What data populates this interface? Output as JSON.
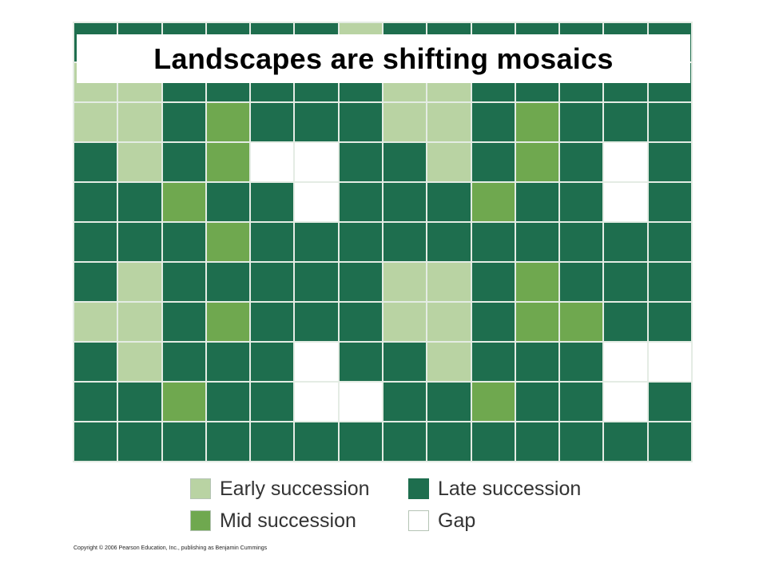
{
  "title": "Landscapes are shifting mosaics",
  "colors": {
    "E": "#b9d3a3",
    "M": "#6fa84f",
    "L": "#1e6e4e",
    "G": "#ffffff"
  },
  "mosaic": {
    "rows": [
      [
        "L",
        "L",
        "L",
        "L",
        "L",
        "L",
        "E",
        "L",
        "L",
        "L",
        "L",
        "L",
        "L",
        "L"
      ],
      [
        "E",
        "E",
        "L",
        "L",
        "L",
        "L",
        "L",
        "E",
        "E",
        "L",
        "L",
        "L",
        "L",
        "L"
      ],
      [
        "E",
        "E",
        "L",
        "M",
        "L",
        "L",
        "L",
        "E",
        "E",
        "L",
        "M",
        "L",
        "L",
        "L"
      ],
      [
        "L",
        "E",
        "L",
        "M",
        "G",
        "G",
        "L",
        "L",
        "E",
        "L",
        "M",
        "L",
        "G",
        "L"
      ],
      [
        "L",
        "L",
        "M",
        "L",
        "L",
        "G",
        "L",
        "L",
        "L",
        "M",
        "L",
        "L",
        "G",
        "L"
      ],
      [
        "L",
        "L",
        "L",
        "M",
        "L",
        "L",
        "L",
        "L",
        "L",
        "L",
        "L",
        "L",
        "L",
        "L"
      ],
      [
        "L",
        "E",
        "L",
        "L",
        "L",
        "L",
        "L",
        "E",
        "E",
        "L",
        "M",
        "L",
        "L",
        "L"
      ],
      [
        "E",
        "E",
        "L",
        "M",
        "L",
        "L",
        "L",
        "E",
        "E",
        "L",
        "M",
        "M",
        "L",
        "L"
      ],
      [
        "L",
        "E",
        "L",
        "L",
        "L",
        "G",
        "L",
        "L",
        "E",
        "L",
        "L",
        "L",
        "G",
        "G"
      ],
      [
        "L",
        "L",
        "M",
        "L",
        "L",
        "G",
        "G",
        "L",
        "L",
        "M",
        "L",
        "L",
        "G",
        "L"
      ],
      [
        "L",
        "L",
        "L",
        "L",
        "L",
        "L",
        "L",
        "L",
        "L",
        "L",
        "L",
        "L",
        "L",
        "L"
      ]
    ]
  },
  "legend": [
    {
      "key": "E",
      "label": "Early succession"
    },
    {
      "key": "L",
      "label": "Late succession"
    },
    {
      "key": "M",
      "label": "Mid succession"
    },
    {
      "key": "G",
      "label": "Gap"
    }
  ],
  "copyright": "Copyright © 2006 Pearson Education, Inc., publishing as Benjamin Cummings"
}
